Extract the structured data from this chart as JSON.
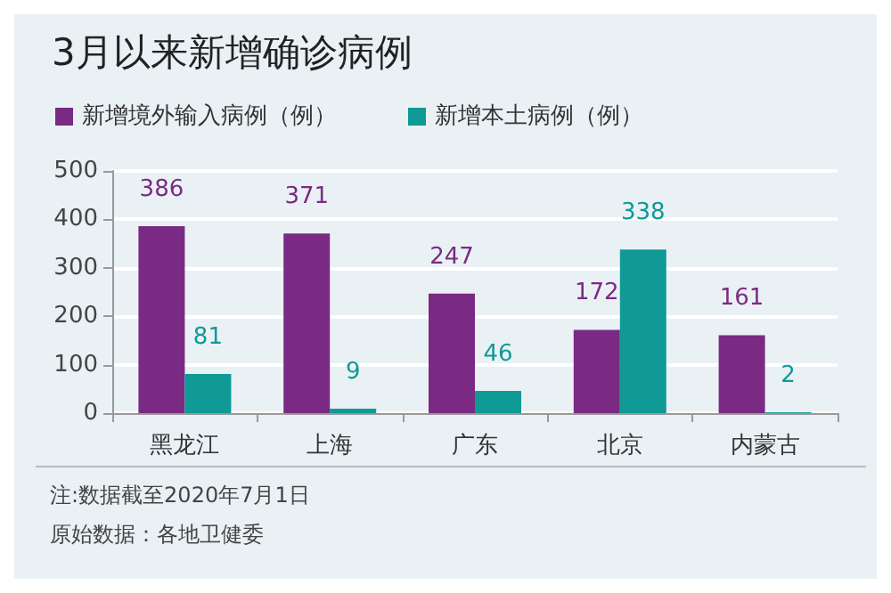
{
  "chart_data": {
    "type": "bar",
    "title": "3月以来新增确诊病例",
    "categories": [
      "黑龙江",
      "上海",
      "广东",
      "北京",
      "内蒙古"
    ],
    "series": [
      {
        "name": "新增境外输入病例（例）",
        "color": "#7b2a83",
        "values": [
          386,
          371,
          247,
          172,
          161
        ]
      },
      {
        "name": "新增本土病例（例）",
        "color": "#0f9a96",
        "values": [
          81,
          9,
          46,
          338,
          2
        ]
      }
    ],
    "ylim": [
      0,
      500
    ],
    "yticks": [
      0,
      100,
      200,
      300,
      400,
      500
    ],
    "grid": "y",
    "legend": "top left",
    "data_labels": true,
    "annotations": [
      "注:数据截至2020年7月1日",
      "原始数据：各地卫健委"
    ]
  }
}
